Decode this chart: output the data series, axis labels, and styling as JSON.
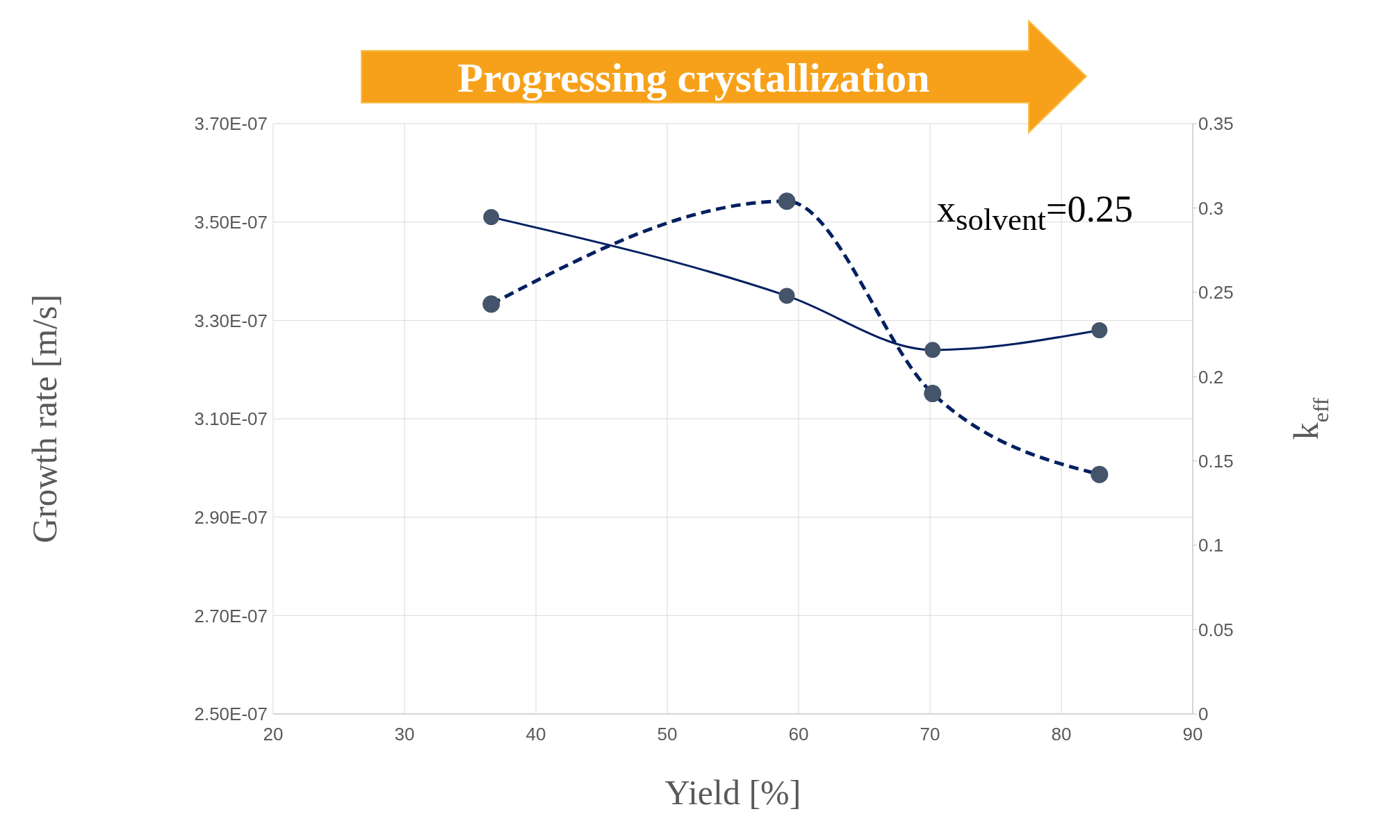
{
  "chart_data": {
    "type": "line",
    "xlabel": "Yield [%]",
    "ylabel": "Growth rate [m/s]",
    "y2label": "k$_{eff}$",
    "x": [
      36.6,
      59.1,
      70.2,
      82.9
    ],
    "series": [
      {
        "color": "#002060",
        "values": [
          3.51e-07,
          3.35e-07,
          3.24e-07,
          3.28e-07
        ],
        "line_style": "solid"
      },
      {
        "color": "#002060",
        "values": [
          0.243,
          0.304,
          0.19,
          0.142
        ],
        "axis": "y2",
        "line_style": "dashed"
      }
    ],
    "xlim": [
      20,
      90
    ],
    "xticks": [
      20,
      30,
      40,
      50,
      60,
      70,
      80,
      90
    ],
    "ylim": [
      2.5e-07,
      3.7e-07
    ],
    "yticks": [
      {
        "value": 2.5e-07,
        "label": "2.50E-07"
      },
      {
        "value": 2.7e-07,
        "label": "2.70E-07"
      },
      {
        "value": 2.9e-07,
        "label": "2.90E-07"
      },
      {
        "value": 3.1e-07,
        "label": "3.10E-07"
      },
      {
        "value": 3.3e-07,
        "label": "3.30E-07"
      },
      {
        "value": 3.5e-07,
        "label": "3.50E-07"
      },
      {
        "value": 3.7e-07,
        "label": "3.70E-07"
      }
    ],
    "y2lim": [
      0,
      0.35
    ],
    "y2ticks": [
      0,
      0.05,
      0.1,
      0.15,
      0.2,
      0.25,
      0.3,
      0.35
    ],
    "grid": true,
    "legend": false,
    "marker": "circle",
    "annotations": [
      "Progressing crystallization",
      "x$_{solvent}$=0.25"
    ]
  }
}
